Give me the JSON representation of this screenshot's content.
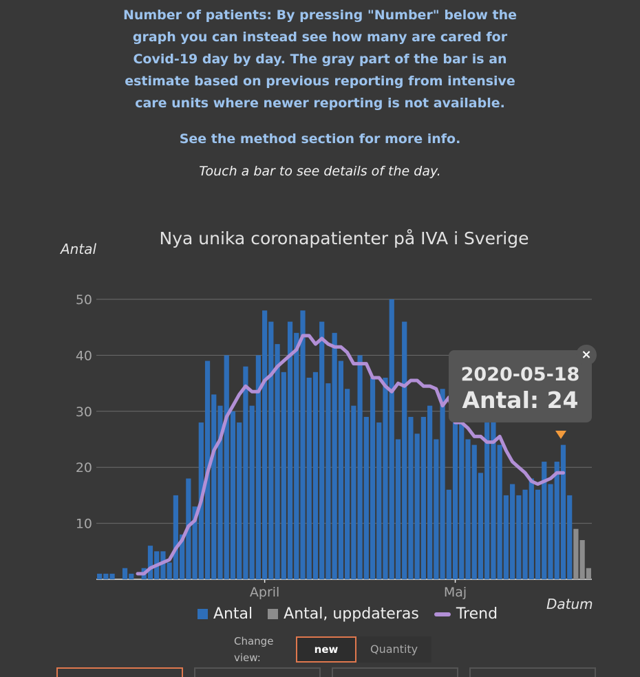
{
  "intro": {
    "paragraph1": "Number of patients: By pressing \"Number\" below the graph you can instead see how many are cared for Covid-19 day by day. The gray part of the bar is an estimate based on previous reporting from intensive care units where newer reporting is not available.",
    "paragraph2": "See the method section for more info.",
    "hint": "Touch a bar to see details of the day."
  },
  "colors": {
    "bar": "#2e6eb8",
    "bar_estimate": "#8c8c8c",
    "trend": "#b28fd6",
    "marker": "#f29a3c"
  },
  "chart_data": {
    "type": "bar",
    "title": "Nya unika coronapatienter på IVA i Sverige",
    "ylabel": "Antal",
    "xlabel": "Datum",
    "ylim": [
      0,
      50
    ],
    "yticks": [
      10,
      20,
      30,
      40,
      50
    ],
    "xtick_labels": [
      {
        "date": "2020-04-01",
        "label": "April"
      },
      {
        "date": "2020-05-01",
        "label": "Maj"
      }
    ],
    "start_date": "2020-03-06",
    "series": [
      {
        "name": "Antal",
        "values": [
          1,
          1,
          1,
          0,
          2,
          1,
          0,
          2,
          6,
          5,
          5,
          3,
          15,
          8,
          18,
          13,
          28,
          39,
          33,
          31,
          40,
          30,
          28,
          38,
          31,
          40,
          48,
          46,
          42,
          37,
          46,
          44,
          48,
          36,
          37,
          46,
          35,
          44,
          39,
          34,
          31,
          40,
          29,
          36,
          28,
          36,
          50,
          25,
          46,
          29,
          26,
          29,
          31,
          25,
          34,
          16,
          28,
          28,
          25,
          24,
          19,
          28,
          29,
          24,
          15,
          17,
          15,
          16,
          18,
          16,
          21,
          17,
          21,
          24,
          15,
          0,
          0,
          0
        ],
        "estimate": [
          0,
          0,
          0,
          0,
          0,
          0,
          0,
          0,
          0,
          0,
          0,
          0,
          0,
          0,
          0,
          0,
          0,
          0,
          0,
          0,
          0,
          0,
          0,
          0,
          0,
          0,
          0,
          0,
          0,
          0,
          0,
          0,
          0,
          0,
          0,
          0,
          0,
          0,
          0,
          0,
          0,
          0,
          0,
          0,
          0,
          0,
          0,
          0,
          0,
          0,
          0,
          0,
          0,
          0,
          0,
          0,
          0,
          0,
          0,
          0,
          0,
          0,
          0,
          0,
          0,
          0,
          0,
          0,
          0,
          0,
          0,
          0,
          0,
          0,
          0,
          9,
          7,
          2
        ]
      },
      {
        "name": "Antal, uppdateras"
      },
      {
        "name": "Trend",
        "values": [
          null,
          null,
          null,
          null,
          null,
          null,
          1,
          1,
          2,
          2.5,
          3,
          3.5,
          5.5,
          7,
          9.5,
          10.5,
          14,
          19,
          23,
          25,
          29,
          31,
          33,
          34.5,
          33.5,
          33.5,
          35.5,
          36.5,
          38,
          39,
          40,
          41,
          43.5,
          43.5,
          42,
          43,
          42,
          41.5,
          41.5,
          40.5,
          38.5,
          38.5,
          38.5,
          36,
          36,
          34.5,
          33.5,
          35,
          34.5,
          35.5,
          35.5,
          34.5,
          34.5,
          34,
          31,
          32.5,
          28,
          28,
          27,
          25.5,
          25.5,
          24.5,
          24.5,
          25.5,
          23,
          21,
          20,
          19,
          17.5,
          17,
          17.5,
          18,
          19,
          19,
          null,
          null,
          null,
          null
        ]
      }
    ],
    "tooltip": {
      "date": "2020-05-18",
      "label": "Antal: 24",
      "close": "×"
    }
  },
  "controls": {
    "change_view_label": "Change view:",
    "new_label": "new",
    "quantity_label": "Quantity"
  }
}
